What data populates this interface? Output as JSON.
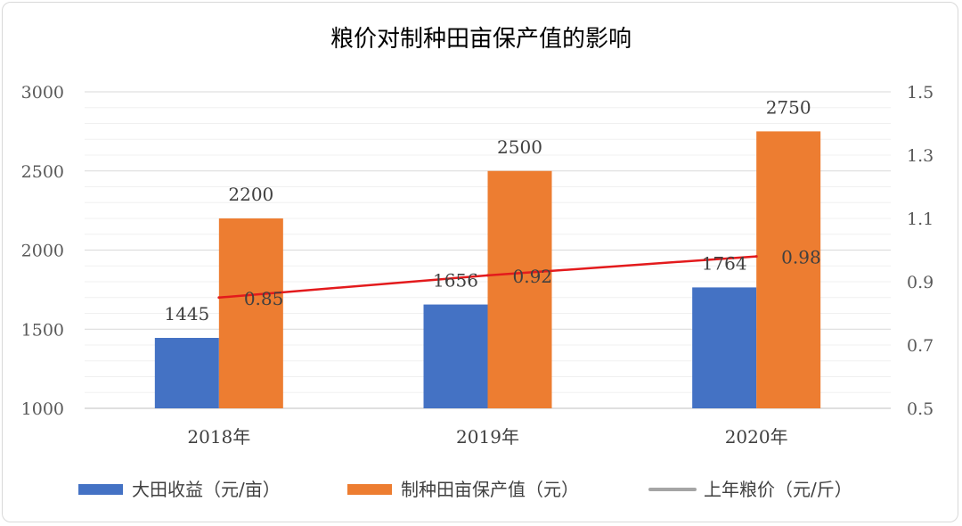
{
  "chart_data": {
    "type": "bar",
    "title": "粮价对制种田亩保产值的影响",
    "categories": [
      "2018年",
      "2019年",
      "2020年"
    ],
    "series": [
      {
        "name": "大田收益（元/亩）",
        "type": "bar",
        "axis": "left",
        "color": "#4472C4",
        "values": [
          1445,
          1656,
          1764
        ]
      },
      {
        "name": "制种田亩保产值（元）",
        "type": "bar",
        "axis": "left",
        "color": "#ED7D31",
        "values": [
          2200,
          2500,
          2750
        ]
      },
      {
        "name": "上年粮价（元/斤）",
        "type": "line",
        "axis": "right",
        "color": "#A5A5A5",
        "line_color": "#E31A1C",
        "values": [
          0.85,
          0.92,
          0.98
        ]
      }
    ],
    "data_labels": {
      "大田收益": [
        "1445",
        "1656",
        "1764"
      ],
      "制种田亩保产值": [
        "2200",
        "2500",
        "2750"
      ],
      "上年粮价": [
        "0.85",
        "0.92",
        "0.98"
      ]
    },
    "y_left": {
      "min": 1000,
      "max": 3000,
      "ticks": [
        "1000",
        "1500",
        "2000",
        "2500",
        "3000"
      ]
    },
    "y_right": {
      "min": 0.5,
      "max": 1.5,
      "ticks": [
        "0.5",
        "0.7",
        "0.9",
        "1.1",
        "1.3",
        "1.5"
      ]
    },
    "grid": true,
    "legend_position": "bottom"
  }
}
